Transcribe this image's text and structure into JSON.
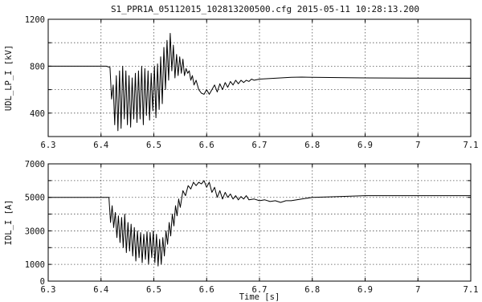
{
  "figure_title": "S1_PPR1A_05112015_102813200500.cfg 2015-05-11 10:28:13.200",
  "chart_data": [
    {
      "type": "line",
      "ylabel": "UDL_LP_I [kV]",
      "xlabel": "",
      "xlim": [
        6.3,
        7.1
      ],
      "ylim": [
        200,
        1200
      ],
      "xticks": [
        6.3,
        6.4,
        6.5,
        6.6,
        6.7,
        6.8,
        6.9,
        7,
        7.1
      ],
      "xtick_labels": [
        "6.3",
        "6.4",
        "6.5",
        "6.6",
        "6.7",
        "6.8",
        "6.9",
        "7",
        "7.1"
      ],
      "yticks": [
        400,
        600,
        800,
        1000,
        1200
      ],
      "ytick_labels": [
        "400",
        "",
        "800",
        "",
        "1200"
      ],
      "grid": true,
      "series": [
        {
          "x": [
            6.3,
            6.41,
            6.417,
            6.42,
            6.423,
            6.426,
            6.429,
            6.432,
            6.435,
            6.438,
            6.441,
            6.444,
            6.447,
            6.45,
            6.453,
            6.456,
            6.459,
            6.462,
            6.465,
            6.468,
            6.471,
            6.474,
            6.477,
            6.48,
            6.483,
            6.486,
            6.489,
            6.492,
            6.495,
            6.498,
            6.501,
            6.504,
            6.507,
            6.51,
            6.513,
            6.516,
            6.519,
            6.522,
            6.525,
            6.528,
            6.531,
            6.534,
            6.537,
            6.54,
            6.543,
            6.546,
            6.549,
            6.552,
            6.555,
            6.558,
            6.561,
            6.564,
            6.567,
            6.57,
            6.573,
            6.576,
            6.58,
            6.585,
            6.59,
            6.595,
            6.6,
            6.605,
            6.61,
            6.615,
            6.62,
            6.625,
            6.63,
            6.635,
            6.64,
            6.645,
            6.65,
            6.655,
            6.66,
            6.665,
            6.67,
            6.675,
            6.68,
            6.685,
            6.69,
            6.7,
            6.72,
            6.74,
            6.76,
            6.78,
            6.8,
            6.85,
            6.9,
            7.0,
            7.1
          ],
          "y": [
            800,
            800,
            790,
            520,
            640,
            300,
            720,
            250,
            760,
            270,
            800,
            350,
            760,
            300,
            720,
            280,
            700,
            350,
            740,
            320,
            760,
            350,
            800,
            300,
            780,
            380,
            760,
            340,
            740,
            420,
            800,
            360,
            820,
            430,
            880,
            480,
            960,
            600,
            1020,
            680,
            1080,
            760,
            980,
            700,
            900,
            720,
            880,
            740,
            860,
            720,
            780,
            740,
            760,
            680,
            720,
            640,
            680,
            600,
            570,
            560,
            600,
            560,
            600,
            640,
            580,
            650,
            600,
            660,
            620,
            670,
            640,
            680,
            650,
            680,
            660,
            680,
            670,
            690,
            680,
            690,
            695,
            700,
            705,
            707,
            705,
            703,
            700,
            698,
            697
          ]
        }
      ]
    },
    {
      "type": "line",
      "ylabel": "IDL_I [A]",
      "xlabel": "Time [s]",
      "xlim": [
        6.3,
        7.1
      ],
      "ylim": [
        0,
        7000
      ],
      "xticks": [
        6.3,
        6.4,
        6.5,
        6.6,
        6.7,
        6.8,
        6.9,
        7,
        7.1
      ],
      "xtick_labels": [
        "6.3",
        "6.4",
        "6.5",
        "6.6",
        "6.7",
        "6.8",
        "6.9",
        "7",
        "7.1"
      ],
      "yticks": [
        0,
        1000,
        2000,
        3000,
        4000,
        5000,
        6000,
        7000
      ],
      "ytick_labels": [
        "0",
        "1000",
        "",
        "3000",
        "",
        "5000",
        "",
        "7000"
      ],
      "grid": true,
      "series": [
        {
          "x": [
            6.3,
            6.415,
            6.418,
            6.421,
            6.424,
            6.427,
            6.43,
            6.433,
            6.436,
            6.439,
            6.442,
            6.445,
            6.448,
            6.451,
            6.454,
            6.457,
            6.46,
            6.463,
            6.466,
            6.469,
            6.472,
            6.475,
            6.478,
            6.481,
            6.484,
            6.487,
            6.49,
            6.493,
            6.496,
            6.499,
            6.502,
            6.505,
            6.508,
            6.511,
            6.514,
            6.517,
            6.52,
            6.523,
            6.526,
            6.529,
            6.532,
            6.535,
            6.538,
            6.541,
            6.544,
            6.547,
            6.55,
            6.555,
            6.56,
            6.565,
            6.57,
            6.575,
            6.58,
            6.585,
            6.59,
            6.595,
            6.6,
            6.605,
            6.61,
            6.615,
            6.62,
            6.625,
            6.63,
            6.635,
            6.64,
            6.645,
            6.65,
            6.655,
            6.66,
            6.665,
            6.67,
            6.675,
            6.68,
            6.69,
            6.7,
            6.71,
            6.72,
            6.73,
            6.74,
            6.75,
            6.76,
            6.78,
            6.8,
            6.85,
            6.9,
            6.95,
            7.0,
            7.05,
            7.1
          ],
          "y": [
            5000,
            5000,
            3500,
            4500,
            3200,
            4100,
            2600,
            3900,
            2300,
            3800,
            2000,
            4000,
            1700,
            3500,
            1800,
            3400,
            1500,
            3200,
            1200,
            3000,
            1400,
            2900,
            1100,
            2800,
            1300,
            2950,
            1000,
            2900,
            1400,
            3000,
            1100,
            2800,
            900,
            2500,
            1000,
            2600,
            1500,
            3000,
            2200,
            3500,
            2700,
            4000,
            3300,
            4500,
            3900,
            4900,
            4400,
            5400,
            5100,
            5700,
            5500,
            5900,
            5700,
            5900,
            5800,
            6000,
            5600,
            5900,
            5300,
            5600,
            5000,
            5400,
            4900,
            5300,
            5000,
            5200,
            4900,
            5100,
            4850,
            5050,
            4900,
            5100,
            4850,
            4900,
            4800,
            4850,
            4750,
            4800,
            4700,
            4800,
            4800,
            4900,
            5000,
            5050,
            5100,
            5100,
            5100,
            5100,
            5100
          ]
        }
      ]
    }
  ]
}
